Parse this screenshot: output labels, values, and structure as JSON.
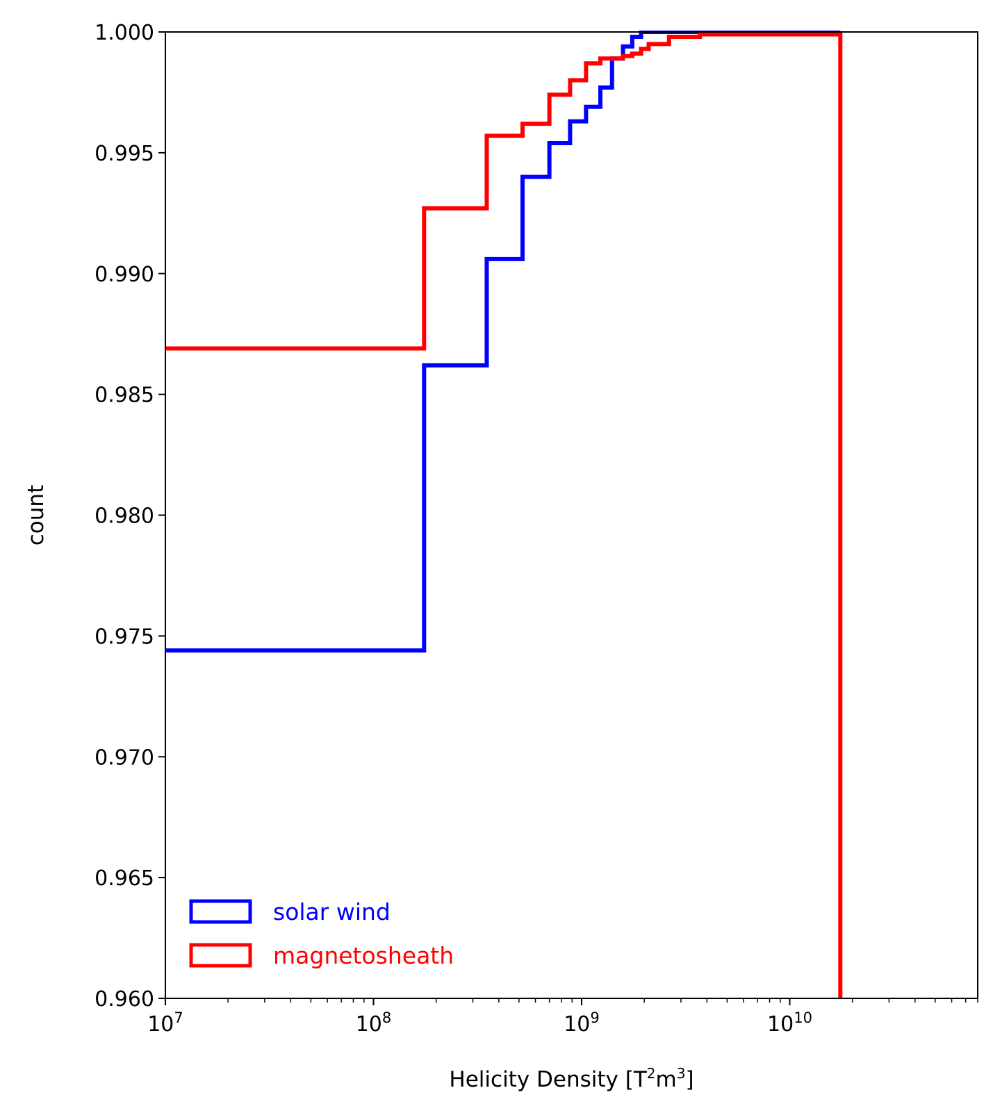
{
  "chart_data": {
    "type": "line",
    "subtype": "cumulative step histogram",
    "xlabel": "Helicity Density [T",
    "xlabel_unit_rest": "m",
    "xlabel_sup1": "2",
    "xlabel_sup2": "3",
    "xlabel_close": "]",
    "ylabel": "count",
    "x_scale": "log",
    "xlim": [
      10000000.0,
      80000000000
    ],
    "ylim": [
      0.96,
      1.0
    ],
    "y_ticks": [
      {
        "value": 0.96,
        "label": "0.960"
      },
      {
        "value": 0.965,
        "label": "0.965"
      },
      {
        "value": 0.97,
        "label": "0.970"
      },
      {
        "value": 0.975,
        "label": "0.975"
      },
      {
        "value": 0.98,
        "label": "0.980"
      },
      {
        "value": 0.985,
        "label": "0.985"
      },
      {
        "value": 0.99,
        "label": "0.990"
      },
      {
        "value": 0.995,
        "label": "0.995"
      },
      {
        "value": 1.0,
        "label": "1.000"
      }
    ],
    "x_ticks": [
      {
        "value": 10000000.0,
        "base": "10",
        "exp": "7"
      },
      {
        "value": 100000000.0,
        "base": "10",
        "exp": "8"
      },
      {
        "value": 1000000000.0,
        "base": "10",
        "exp": "9"
      },
      {
        "value": 10000000000.0,
        "base": "10",
        "exp": "10"
      }
    ],
    "grid": false,
    "legend_position": "lower-left",
    "series": [
      {
        "name": "solar wind",
        "color": "#0000ff",
        "steps": [
          {
            "x": 10000000.0,
            "y": 0.9744
          },
          {
            "x": 175000000,
            "y": 0.9862
          },
          {
            "x": 350000000,
            "y": 0.9906
          },
          {
            "x": 520000000,
            "y": 0.994
          },
          {
            "x": 700000000,
            "y": 0.9954
          },
          {
            "x": 880000000,
            "y": 0.9963
          },
          {
            "x": 1050000000,
            "y": 0.9969
          },
          {
            "x": 1230000000,
            "y": 0.9977
          },
          {
            "x": 1400000000,
            "y": 0.9989
          },
          {
            "x": 1580000000,
            "y": 0.9994
          },
          {
            "x": 1750000000,
            "y": 0.9998
          },
          {
            "x": 1930000000,
            "y": 1.0
          }
        ],
        "end_x": 17500000000
      },
      {
        "name": "magnetosheath",
        "color": "#ff0000",
        "steps": [
          {
            "x": 10000000.0,
            "y": 0.9869
          },
          {
            "x": 175000000,
            "y": 0.9927
          },
          {
            "x": 350000000,
            "y": 0.9957
          },
          {
            "x": 520000000,
            "y": 0.9962
          },
          {
            "x": 700000000,
            "y": 0.9974
          },
          {
            "x": 880000000,
            "y": 0.998
          },
          {
            "x": 1050000000,
            "y": 0.9987
          },
          {
            "x": 1230000000,
            "y": 0.9989
          },
          {
            "x": 1580000000,
            "y": 0.999
          },
          {
            "x": 1750000000,
            "y": 0.9991
          },
          {
            "x": 1930000000,
            "y": 0.9993
          },
          {
            "x": 2100000000,
            "y": 0.9995
          },
          {
            "x": 2630000000,
            "y": 0.9998
          },
          {
            "x": 3700000000,
            "y": 0.9999
          }
        ],
        "end_x": 17500000000,
        "drop_to": 0.96
      }
    ]
  }
}
